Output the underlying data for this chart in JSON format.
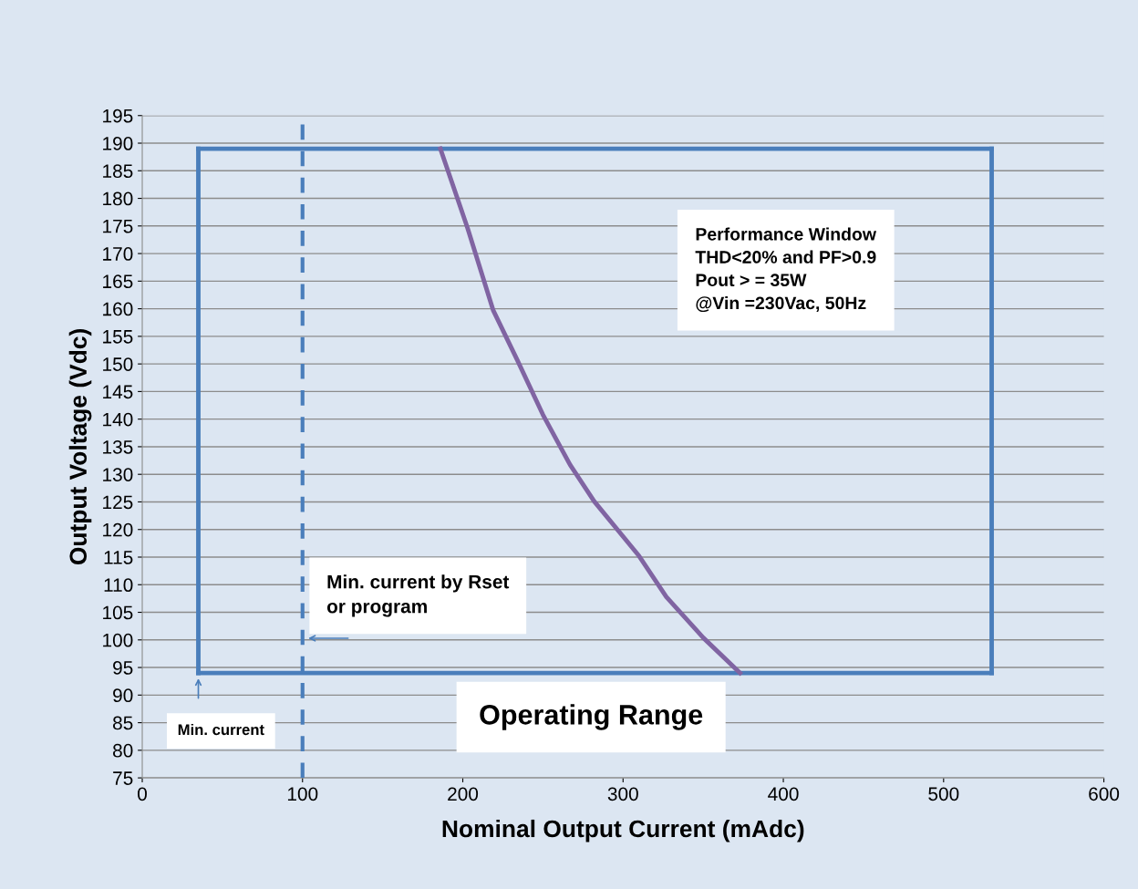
{
  "chart_data": {
    "type": "line",
    "xlabel": "Nominal Output Current (mAdc)",
    "ylabel": "Output Voltage (Vdc)",
    "xlim": [
      0,
      600
    ],
    "xticks": [
      0,
      100,
      200,
      300,
      400,
      500,
      600
    ],
    "ylim": [
      75,
      195
    ],
    "yticks": [
      75,
      80,
      85,
      90,
      95,
      100,
      105,
      110,
      115,
      120,
      125,
      130,
      135,
      140,
      145,
      150,
      155,
      160,
      165,
      170,
      175,
      180,
      185,
      190,
      195
    ],
    "grid": "y",
    "marker": "none",
    "line_style": "solid",
    "series": [
      {
        "color": "#4a7ebb",
        "x": [
          35,
          530
        ],
        "values": [
          94,
          94
        ]
      },
      {
        "color": "#4a7ebb",
        "x": [
          35,
          530
        ],
        "values": [
          189,
          189
        ]
      },
      {
        "color": "#4a7ebb",
        "x": [
          35,
          35
        ],
        "values": [
          94,
          189
        ]
      },
      {
        "color": "#4a7ebb",
        "x": [
          530,
          530
        ],
        "values": [
          94,
          189
        ]
      },
      {
        "color": "#8064a2",
        "x": [
          186,
          203,
          219,
          234,
          250,
          267,
          282,
          310,
          327,
          350,
          373
        ],
        "values": [
          189,
          174.6,
          159.7,
          150.7,
          140.8,
          131.7,
          125.1,
          115.2,
          107.8,
          100.4,
          94
        ]
      }
    ],
    "ref_lines": [
      {
        "axis": "x",
        "value": 100,
        "label": null,
        "color": "#4a7ebb",
        "line_style": "dashed"
      }
    ],
    "annotations": [
      "Performance Window\nTHD<20% and PF>0.9\nPout > = 35W\n@Vin =230Vac, 50Hz",
      "Min. current by Rset\nor program",
      "Operating Range",
      "Min. current"
    ]
  }
}
